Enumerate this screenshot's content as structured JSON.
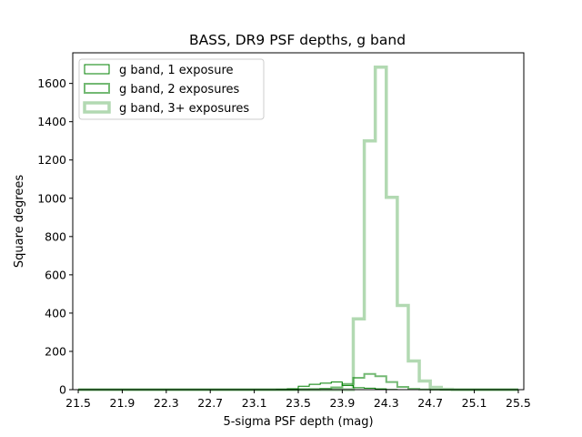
{
  "chart_data": {
    "type": "histogram-step",
    "title": "BASS, DR9 PSF depths, g band",
    "xlabel": "5-sigma PSF depth (mag)",
    "ylabel": "Square degrees",
    "xlim": [
      21.45,
      25.55
    ],
    "ylim": [
      0,
      1760
    ],
    "xticks": [
      21.5,
      21.9,
      22.3,
      22.7,
      23.1,
      23.5,
      23.9,
      24.3,
      24.7,
      25.1,
      25.5
    ],
    "xtick_labels": [
      "21.5",
      "21.9",
      "22.3",
      "22.7",
      "23.1",
      "23.5",
      "23.9",
      "24.3",
      "24.7",
      "25.1",
      "25.5"
    ],
    "yticks": [
      0,
      200,
      400,
      600,
      800,
      1000,
      1200,
      1400,
      1600
    ],
    "ytick_labels": [
      "0",
      "200",
      "400",
      "600",
      "800",
      "1000",
      "1200",
      "1400",
      "1600"
    ],
    "grid": false,
    "legend_position": "top-left",
    "bin_edges": [
      21.5,
      21.6,
      21.7,
      21.8,
      21.9,
      22.0,
      22.1,
      22.2,
      22.3,
      22.4,
      22.5,
      22.6,
      22.7,
      22.8,
      22.9,
      23.0,
      23.1,
      23.2,
      23.3,
      23.4,
      23.5,
      23.6,
      23.7,
      23.8,
      23.9,
      24.0,
      24.1,
      24.2,
      24.3,
      24.4,
      24.5,
      24.6,
      24.7,
      24.8,
      24.9,
      25.0,
      25.1,
      25.2,
      25.3,
      25.4,
      25.5
    ],
    "series": [
      {
        "name": "g band, 1 exposure",
        "color": "#008000",
        "alpha": 1.0,
        "line_width": 1,
        "values": [
          0,
          0,
          0,
          0,
          0,
          0,
          0,
          0,
          0,
          0,
          0,
          0,
          0,
          0,
          0,
          0,
          0,
          0,
          1,
          4,
          18,
          28,
          34,
          40,
          22,
          10,
          8,
          4,
          1,
          0,
          0,
          0,
          0,
          0,
          0,
          0,
          0,
          0,
          0,
          0
        ]
      },
      {
        "name": "g band, 2 exposures",
        "color": "#008000",
        "alpha": 0.55,
        "line_width": 2,
        "values": [
          0,
          0,
          0,
          0,
          0,
          0,
          0,
          0,
          0,
          0,
          0,
          0,
          0,
          0,
          0,
          0,
          0,
          0,
          0,
          0,
          1,
          2,
          5,
          12,
          30,
          62,
          82,
          70,
          40,
          14,
          4,
          1,
          0,
          0,
          0,
          0,
          0,
          0,
          0,
          0
        ]
      },
      {
        "name": "g band, 3+ exposures",
        "color": "#008000",
        "alpha": 0.3,
        "line_width": 3.5,
        "values": [
          0,
          0,
          0,
          0,
          0,
          0,
          0,
          0,
          0,
          0,
          0,
          0,
          0,
          0,
          0,
          0,
          0,
          0,
          0,
          0,
          0,
          0,
          0,
          0,
          0,
          370,
          1300,
          1685,
          1005,
          440,
          150,
          45,
          12,
          2,
          0,
          0,
          0,
          0,
          0,
          0
        ]
      }
    ]
  }
}
